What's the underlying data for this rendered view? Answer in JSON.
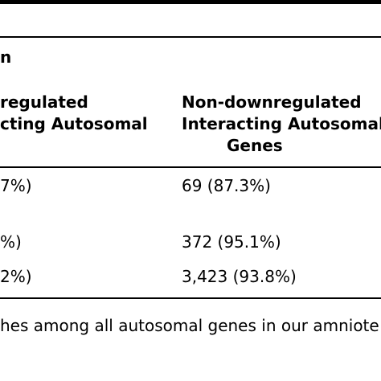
{
  "table": {
    "section_label": "n",
    "col1_header": {
      "line1": "regulated",
      "line2": "cting Autosomal"
    },
    "col2_header": {
      "line1": "Non-downregulated",
      "line2": "Interacting Autosomal",
      "line3": "Genes"
    },
    "rows": [
      {
        "col1": "7%)",
        "col2": "69 (87.3%)"
      },
      {
        "col1": "%)",
        "col2": "372 (95.1%)"
      },
      {
        "col1": "2%)",
        "col2": "3,423 (93.8%)"
      }
    ]
  },
  "caption": "hes among all autosomal genes in our amniote"
}
